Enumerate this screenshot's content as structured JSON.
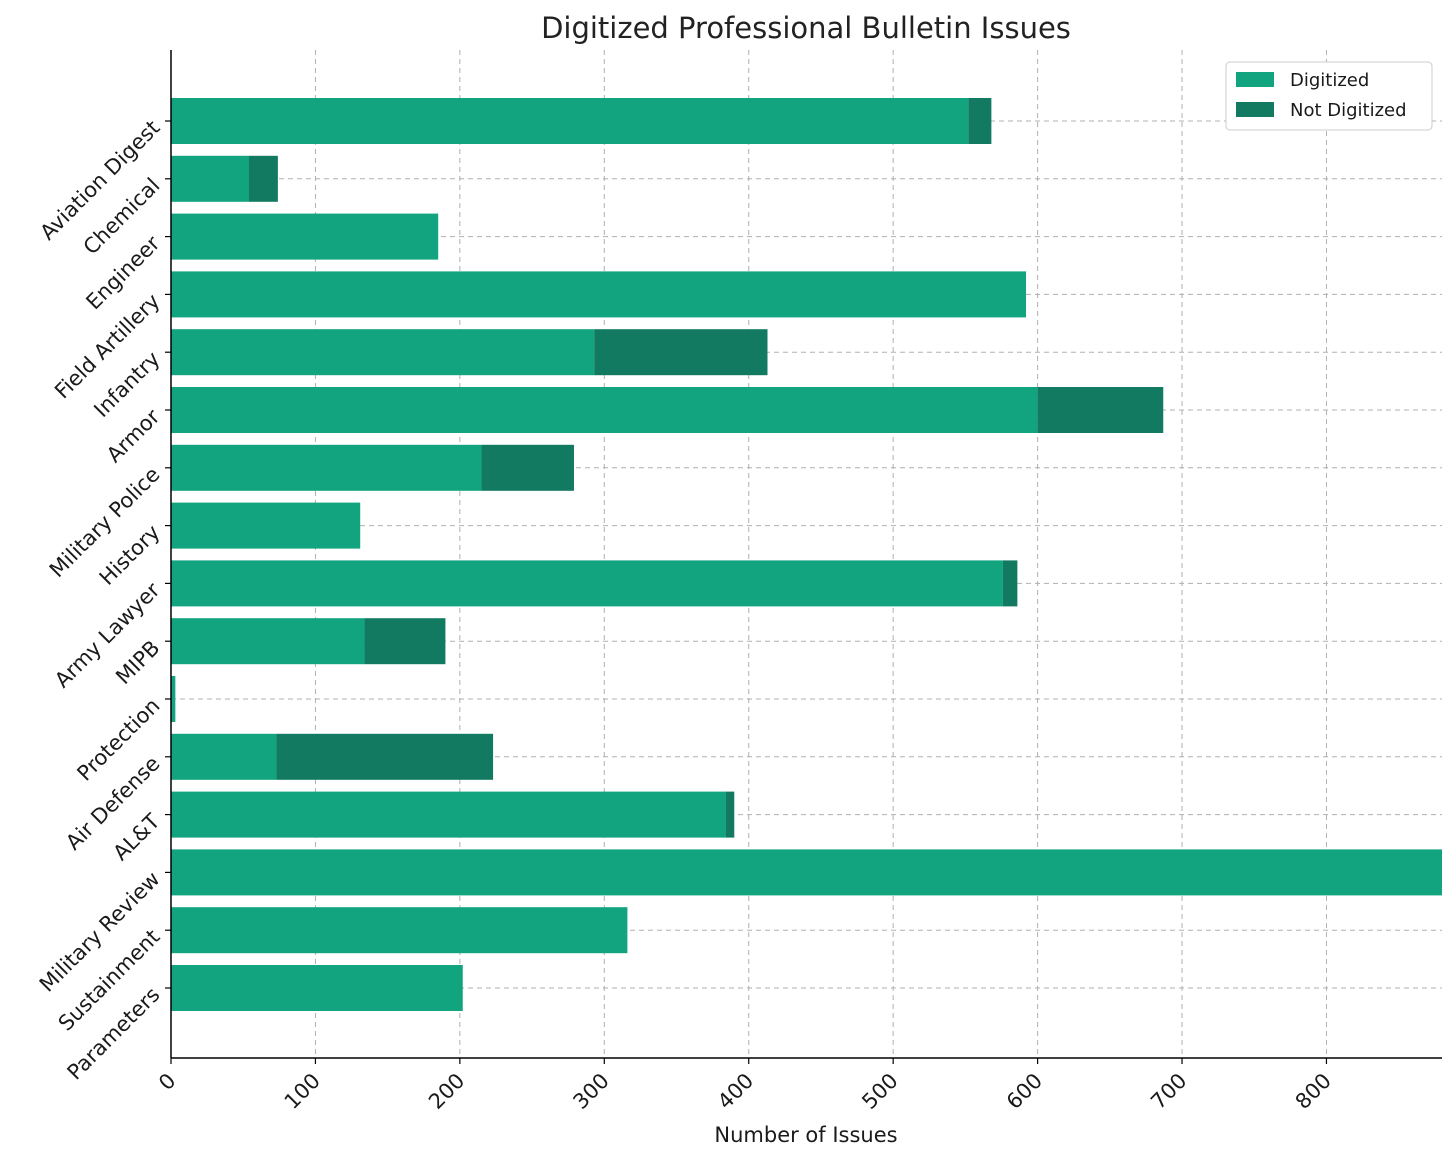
{
  "chart_data": {
    "type": "bar",
    "orientation": "horizontal",
    "stacked": true,
    "title": "Digitized Professional Bulletin Issues",
    "xlabel": "Number of Issues",
    "ylabel": "",
    "xlim": [
      0,
      880
    ],
    "xticks": [
      0,
      100,
      200,
      300,
      400,
      500,
      600,
      700,
      800
    ],
    "grid": true,
    "legend_position": "top-right",
    "categories": [
      "Aviation Digest",
      "Chemical",
      "Engineer",
      "Field Artillery",
      "Infantry",
      "Armor",
      "Military Police",
      "History",
      "Army Lawyer",
      "MIPB",
      "Protection",
      "Air Defense",
      "AL&T",
      "Military Review",
      "Sustainment",
      "Parameters"
    ],
    "series": [
      {
        "name": "Digitized",
        "color": "#12a37f",
        "values": [
          552,
          54,
          185,
          592,
          293,
          600,
          215,
          131,
          576,
          134,
          3,
          73,
          384,
          882,
          316,
          202
        ]
      },
      {
        "name": "Not Digitized",
        "color": "#137a62",
        "values": [
          16,
          20,
          0,
          0,
          120,
          87,
          64,
          0,
          10,
          56,
          0,
          150,
          6,
          0,
          0,
          0
        ]
      }
    ]
  }
}
